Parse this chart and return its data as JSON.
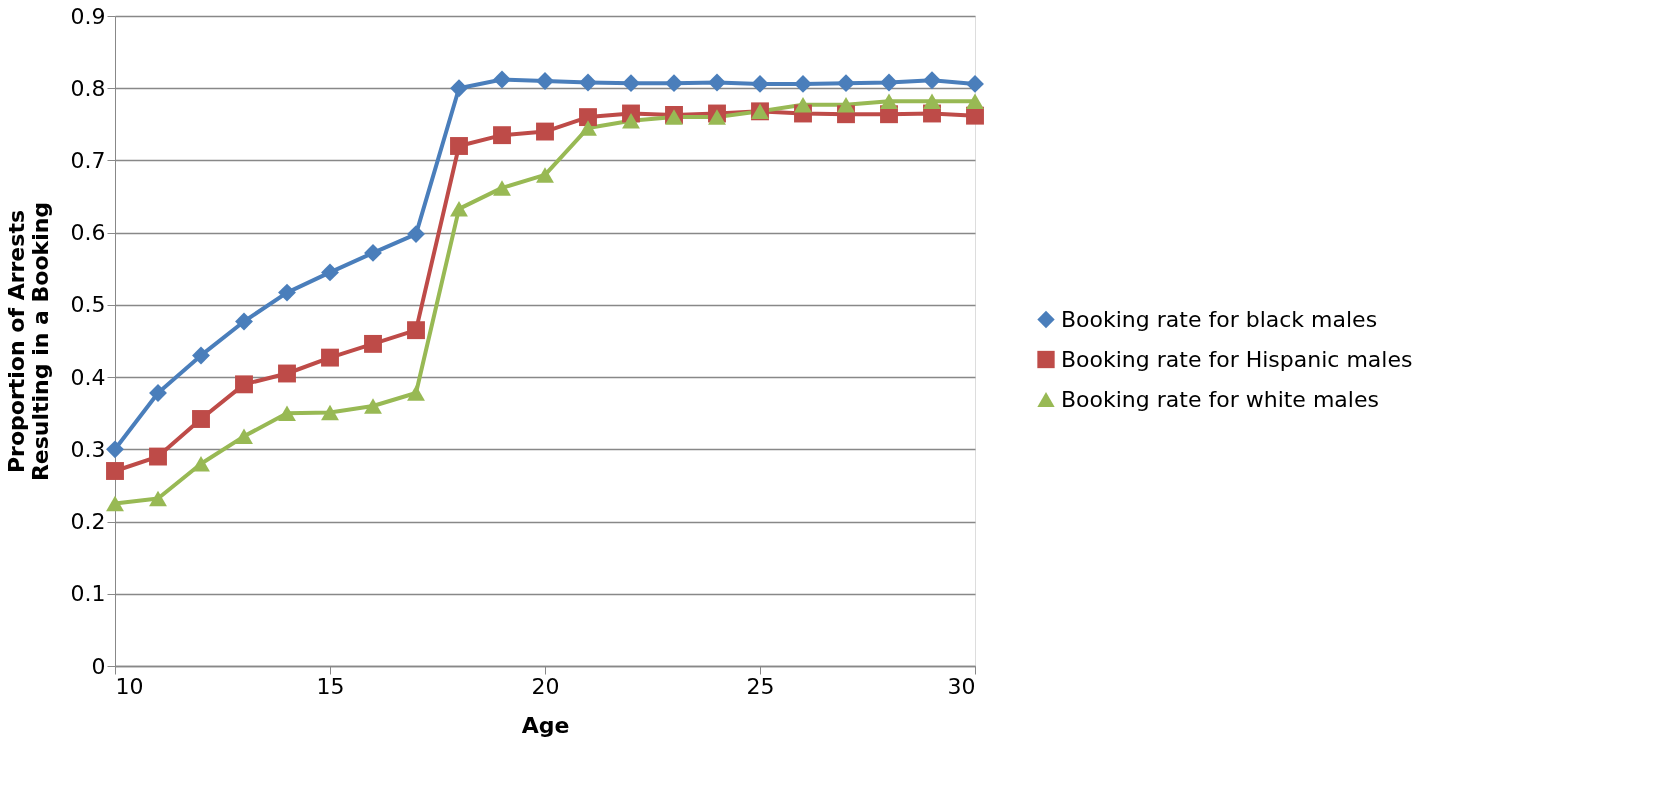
{
  "chart_data": {
    "type": "line",
    "xlabel": "Age",
    "ylabel": "Proportion of Arrests Resulting in a Booking",
    "x": [
      10,
      11,
      12,
      13,
      14,
      15,
      16,
      17,
      18,
      19,
      20,
      21,
      22,
      23,
      24,
      25,
      26,
      27,
      28,
      29,
      30
    ],
    "xlim": [
      10,
      30
    ],
    "xticks": [
      10,
      15,
      20,
      25,
      30
    ],
    "ylim": [
      0,
      0.9
    ],
    "yticks": [
      0,
      0.1,
      0.2,
      0.3,
      0.4,
      0.5,
      0.6,
      0.7,
      0.8,
      0.9
    ],
    "grid": "y",
    "legend": "right",
    "series": [
      {
        "name": "Booking rate for black males",
        "color": "#4a7ebb",
        "marker": "diamond",
        "values": [
          0.3,
          0.378,
          0.43,
          0.477,
          0.517,
          0.545,
          0.572,
          0.598,
          0.8,
          0.812,
          0.81,
          0.808,
          0.807,
          0.807,
          0.808,
          0.806,
          0.806,
          0.807,
          0.808,
          0.811,
          0.806
        ]
      },
      {
        "name": "Booking rate for Hispanic males",
        "color": "#be4b48",
        "marker": "square",
        "values": [
          0.27,
          0.29,
          0.342,
          0.39,
          0.405,
          0.427,
          0.446,
          0.465,
          0.72,
          0.735,
          0.74,
          0.76,
          0.765,
          0.763,
          0.765,
          0.768,
          0.765,
          0.764,
          0.764,
          0.765,
          0.762
        ]
      },
      {
        "name": "Booking rate for white males",
        "color": "#98b954",
        "marker": "triangle",
        "values": [
          0.225,
          0.232,
          0.28,
          0.318,
          0.35,
          0.351,
          0.36,
          0.378,
          0.633,
          0.662,
          0.68,
          0.745,
          0.755,
          0.76,
          0.76,
          0.768,
          0.777,
          0.777,
          0.782,
          0.782,
          0.782
        ]
      }
    ]
  }
}
